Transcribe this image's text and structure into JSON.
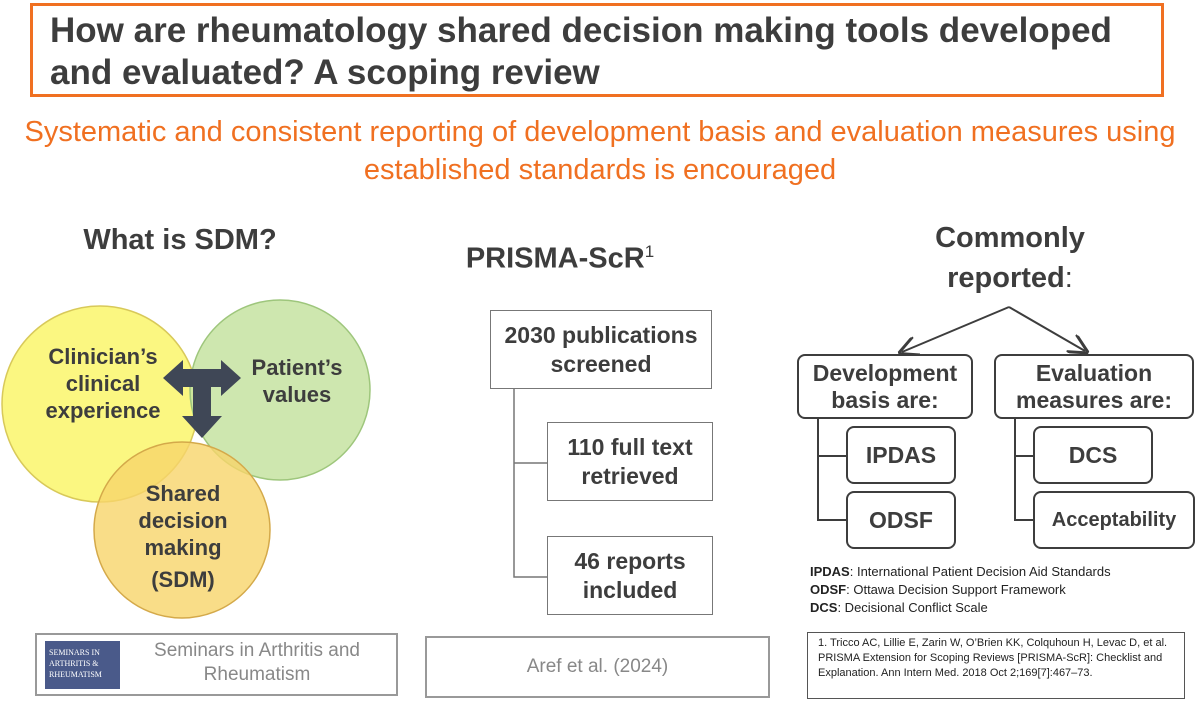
{
  "header": {
    "title": "How are rheumatology shared decision making tools developed and evaluated? A scoping review",
    "subtitle": "Systematic and consistent reporting of development basis and evaluation measures using established standards is encouraged"
  },
  "sdm": {
    "heading": "What is SDM?",
    "clinician": "Clinician’s clinical experience",
    "patient": "Patient’s values",
    "shared": "Shared decision making",
    "sdm_abbr": "(SDM)"
  },
  "prisma": {
    "heading": "PRISMA-ScR",
    "superscript": "1",
    "steps": [
      "2030 publications screened",
      "110 full text retrieved",
      "46 reports included"
    ]
  },
  "reported": {
    "heading": "Commonly reported",
    "heading_colon": ":",
    "development_label": "Development basis are:",
    "evaluation_label": "Evaluation measures are:",
    "development_items": [
      "IPDAS",
      "ODSF"
    ],
    "evaluation_items": [
      "DCS",
      "Acceptability"
    ],
    "legend": [
      {
        "abbr": "IPDAS",
        "text": ": International Patient Decision Aid Standards"
      },
      {
        "abbr": "ODSF",
        "text": ": Ottawa Decision Support Framework"
      },
      {
        "abbr": "DCS",
        "text": ": Decisional Conflict Scale"
      }
    ]
  },
  "footer": {
    "journal_logo_text": "SEMINARS IN ARTHRITIS & RHEUMATISM",
    "journal_name": "Seminars in Arthritis and Rheumatism",
    "citation": "Aref et al. (2024)",
    "reference": "1. Tricco AC, Lillie E, Zarin W, O’Brien KK, Colquhoun H, Levac D, et al. PRISMA Extension for Scoping Reviews [PRISMA-ScR]: Checklist and Explanation. Ann Intern Med. 2018 Oct 2;169[7]:467–73."
  },
  "colors": {
    "accent": "#f07021",
    "text": "#3d3d3d",
    "clinician_circle": "#fbf77a",
    "patient_circle": "#c5e3a1",
    "shared_circle": "#f7d46a",
    "arrow": "#3f4756",
    "logo_bg": "#4a5a8a"
  }
}
